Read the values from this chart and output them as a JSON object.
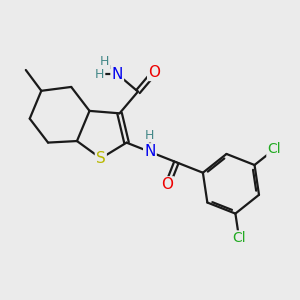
{
  "bg_color": "#ebebeb",
  "bond_color": "#1a1a1a",
  "bond_lw": 1.6,
  "atom_colors": {
    "S": "#b8b800",
    "N": "#0000ee",
    "O": "#ee0000",
    "Cl": "#22aa22",
    "H": "#448888",
    "C": "#1a1a1a"
  },
  "figsize": [
    3.0,
    3.0
  ],
  "dpi": 100
}
